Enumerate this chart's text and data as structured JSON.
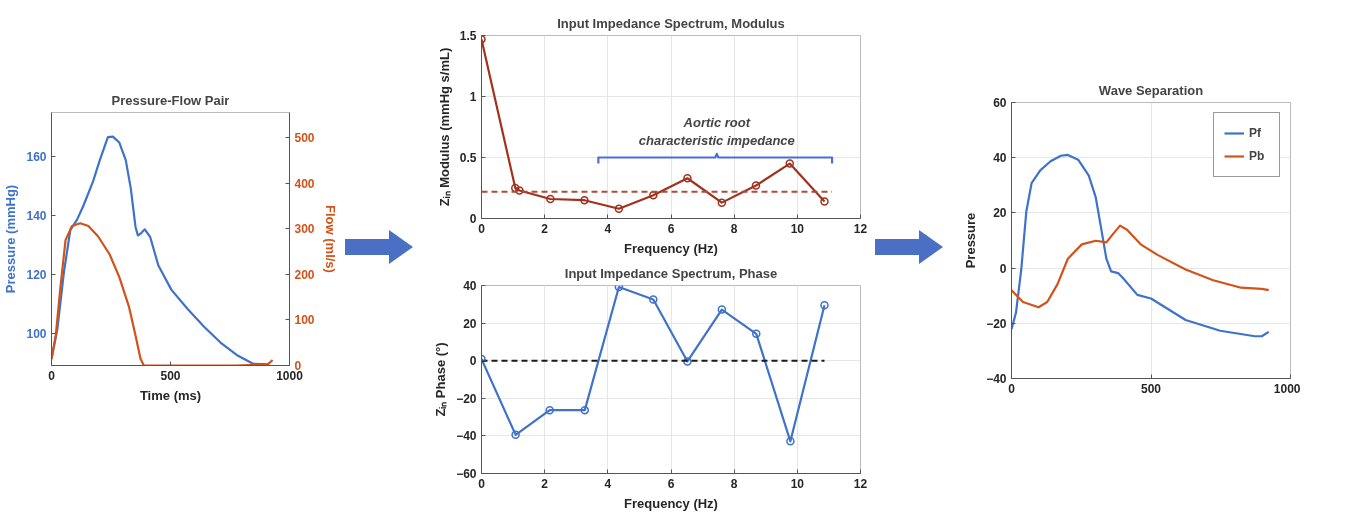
{
  "chart_data": [
    {
      "type": "line",
      "title": "Pressure-Flow Pair",
      "xlabel": "Time (ms)",
      "ylabel": "Pressure (mmHg)",
      "y2label": "Flow (ml/s)",
      "xlim": [
        0,
        1000
      ],
      "xticks": [
        0,
        500,
        1000
      ],
      "ylim": [
        89,
        175
      ],
      "yticks": [
        100,
        120,
        140,
        160
      ],
      "y2lim": [
        0,
        555
      ],
      "y2ticks": [
        0,
        100,
        200,
        300,
        400,
        500
      ],
      "grid": false,
      "series": [
        {
          "color": "#3f72c9",
          "x": [
            0,
            25,
            52,
            79,
            107,
            134,
            175,
            203,
            237,
            258,
            285,
            312,
            333,
            353,
            363,
            374,
            392,
            415,
            449,
            504,
            573,
            641,
            710,
            778,
            847,
            915
          ],
          "values": [
            91.1,
            101.6,
            120.6,
            135,
            138.5,
            143.3,
            151.7,
            158.8,
            166.6,
            166.8,
            164.8,
            158.8,
            149.3,
            136.1,
            133.2,
            133.8,
            135.3,
            132.6,
            123,
            114.7,
            108.1,
            102.2,
            96.8,
            92.6,
            89.6,
            89.4
          ]
        },
        {
          "color": "#d3521a",
          "axis": "y2",
          "x": [
            0,
            18,
            38,
            59,
            86,
            121,
            155,
            196,
            244,
            285,
            326,
            353,
            374,
            388,
            504,
            778,
            908,
            929
          ],
          "values": [
            15,
            66,
            174,
            275,
            306,
            312,
            306,
            283,
            244,
            194,
            128,
            66,
            15,
            0,
            0,
            0,
            2,
            12
          ]
        }
      ]
    },
    {
      "type": "line",
      "title": "Input Impedance Spectrum, Modulus",
      "xlabel": "Frequency (Hz)",
      "ylabel": "Zᵢₙ Modulus (mmHg s/mL)",
      "xlim": [
        0,
        12
      ],
      "xticks": [
        0,
        2,
        4,
        6,
        8,
        10,
        12
      ],
      "ylim": [
        0,
        1.5
      ],
      "yticks": [
        0,
        0.5,
        1,
        1.5
      ],
      "grid": true,
      "marker": "circle",
      "series": [
        {
          "color": "#a0321e",
          "x": [
            0,
            1.07,
            1.2,
            2.18,
            3.26,
            4.35,
            5.44,
            6.52,
            7.61,
            8.69,
            9.76,
            10.86
          ],
          "values": [
            1.47,
            0.25,
            0.23,
            0.16,
            0.15,
            0.08,
            0.19,
            0.33,
            0.13,
            0.27,
            0.45,
            0.14
          ]
        },
        {
          "color": "#4a6fd8",
          "marker": "none",
          "x": [
            3.7,
            3.7,
            7.4,
            7.45,
            7.5,
            11.1,
            11.1
          ],
          "values": [
            0.45,
            0.5,
            0.5,
            0.53,
            0.5,
            0.5,
            0.45
          ]
        }
      ],
      "ref_lines": [
        {
          "axis": "y",
          "value": 0.22,
          "color": "#b04a3a",
          "line_style": "dashed"
        }
      ],
      "annotations": [
        {
          "text": "Aortic root\ncharacteristic impedance",
          "x": 7.45,
          "y": 0.53
        }
      ]
    },
    {
      "type": "line",
      "title": "Input Impedance Spectrum, Phase",
      "xlabel": "Frequency (Hz)",
      "ylabel": "Zᵢₙ Phase (°)",
      "xlim": [
        0,
        12
      ],
      "xticks": [
        0,
        2,
        4,
        6,
        8,
        10,
        12
      ],
      "ylim": [
        -60,
        40
      ],
      "yticks": [
        -60,
        -40,
        -20,
        0,
        20,
        40
      ],
      "grid": true,
      "marker": "circle",
      "series": [
        {
          "color": "#3f72c9",
          "x": [
            0,
            1.08,
            2.16,
            3.27,
            4.35,
            5.44,
            6.52,
            7.61,
            8.7,
            9.78,
            10.86
          ],
          "values": [
            0.9,
            -39.4,
            -26.3,
            -26.3,
            39.2,
            32.6,
            -0.4,
            27.2,
            14.3,
            -42.9,
            29.5
          ]
        }
      ],
      "ref_lines": [
        {
          "axis": "y",
          "value": 0,
          "color": "#1a1a1a",
          "line_style": "dashed"
        }
      ]
    },
    {
      "type": "line",
      "title": "Wave Separation",
      "ylabel": "Pressure",
      "xlim": [
        0,
        1000
      ],
      "xticks": [
        0,
        500,
        1000
      ],
      "ylim": [
        -40,
        60
      ],
      "yticks": [
        -40,
        -20,
        0,
        20,
        40,
        60
      ],
      "grid": true,
      "legend": "top right",
      "series": [
        {
          "name": "Pf",
          "color": "#3f72c9",
          "x": [
            0,
            16,
            35,
            53,
            72,
            103,
            140,
            177,
            202,
            239,
            277,
            302,
            320,
            340,
            357,
            382,
            401,
            451,
            500,
            624,
            748,
            872,
            897,
            922
          ],
          "values": [
            -22.1,
            -16.2,
            -0.5,
            20.4,
            30.8,
            35.4,
            38.7,
            40.7,
            41,
            39.3,
            33.5,
            25.6,
            15.2,
            3.4,
            -1.2,
            -1.8,
            -3.8,
            -9.7,
            -11,
            -18.8,
            -22.7,
            -24.7,
            -24.7,
            -23.1
          ]
        },
        {
          "name": "Pb",
          "color": "#d3521a",
          "x": [
            0,
            41,
            97,
            128,
            165,
            202,
            252,
            302,
            340,
            365,
            389,
            414,
            463,
            525,
            624,
            723,
            823,
            897,
            922
          ],
          "values": [
            -8,
            -12.3,
            -14.2,
            -12.3,
            -5.8,
            3.4,
            8.6,
            9.9,
            9.3,
            12.5,
            15.4,
            13.9,
            8.6,
            4.7,
            -0.5,
            -4.4,
            -7.1,
            -7.5,
            -8
          ]
        }
      ]
    }
  ]
}
